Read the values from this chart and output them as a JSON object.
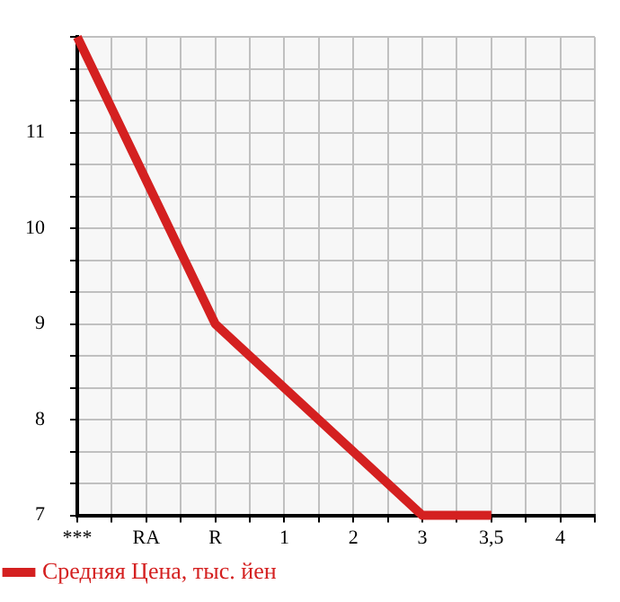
{
  "chart_data": {
    "type": "line",
    "categories": [
      "***",
      "RA",
      "R",
      "1",
      "2",
      "3",
      "3,5",
      "4"
    ],
    "series": [
      {
        "name": "Средняя Цена, тыс. йен",
        "color": "#d42020",
        "values": [
          12,
          null,
          9,
          null,
          null,
          7,
          7,
          null
        ]
      }
    ],
    "ylim": [
      7,
      12
    ],
    "yticks": [
      7,
      {
        "value": 7.333,
        "label": null
      },
      {
        "value": 7.667,
        "label": null
      },
      8,
      {
        "value": 8.333,
        "label": null
      },
      {
        "value": 8.667,
        "label": null
      },
      9,
      {
        "value": 9.333,
        "label": null
      },
      {
        "value": 9.667,
        "label": null
      },
      10,
      {
        "value": 10.333,
        "label": null
      },
      {
        "value": 10.667,
        "label": null
      },
      11,
      {
        "value": 11.333,
        "label": null
      },
      {
        "value": 11.667,
        "label": null
      },
      {
        "value": 12,
        "label": null
      }
    ],
    "grid": true,
    "legend": "bottom left",
    "marker": "none",
    "line_style": "solid"
  }
}
